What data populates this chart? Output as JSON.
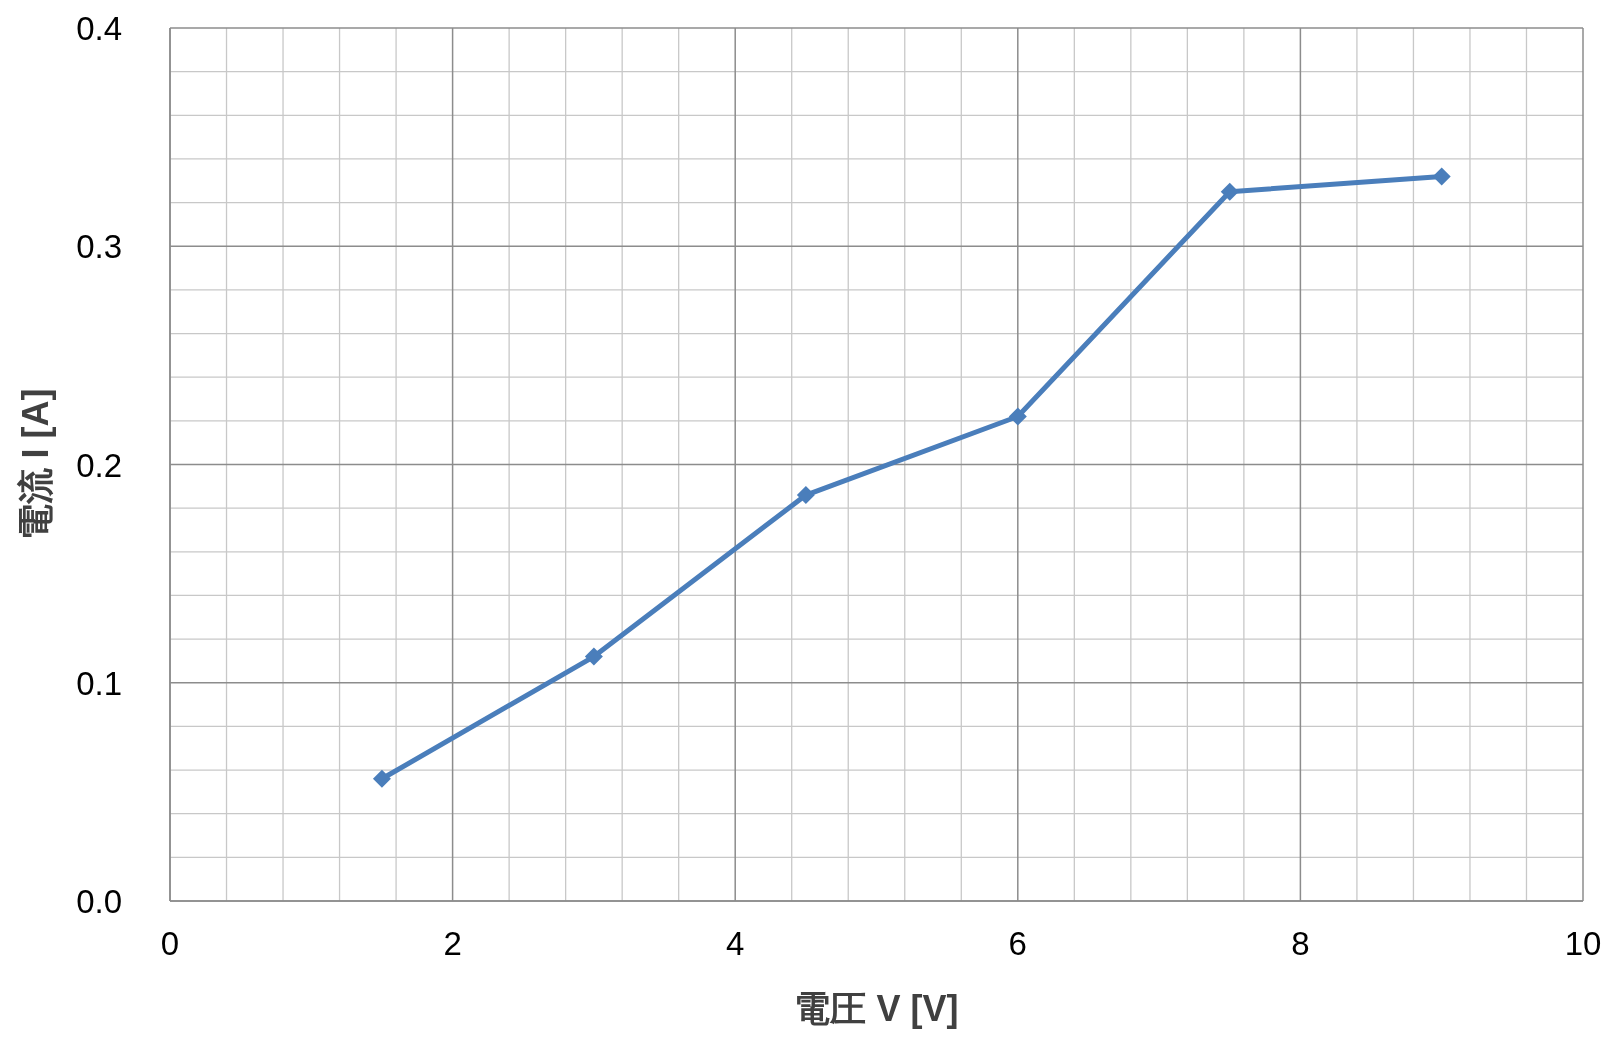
{
  "chart_data": {
    "type": "line",
    "xlabel": "電圧 V [V]",
    "ylabel": "電流 I [A]",
    "x": [
      1.5,
      3,
      4.5,
      6,
      7.5,
      9
    ],
    "series": [
      {
        "color": "#4a7ebb",
        "values": [
          0.056,
          0.112,
          0.186,
          0.222,
          0.325,
          0.332
        ]
      }
    ],
    "xlim": [
      0,
      10
    ],
    "xticks": [
      0,
      2,
      4,
      6,
      8,
      10
    ],
    "ylim": [
      0,
      0.4
    ],
    "yticks": [
      {
        "value": 0,
        "label": "0.0"
      },
      0.1,
      0.2,
      0.3,
      0.4
    ],
    "grid": true,
    "marker": "diamond",
    "line_style": "solid"
  }
}
